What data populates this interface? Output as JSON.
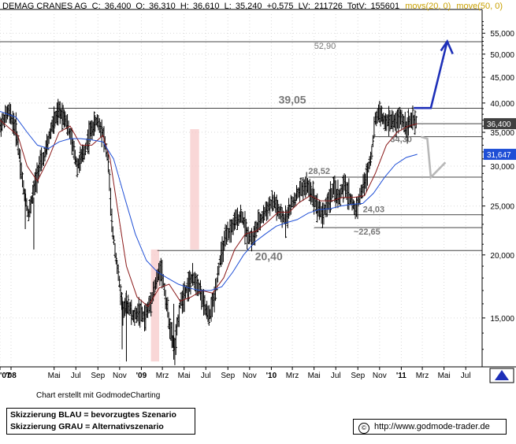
{
  "header": {
    "ticker": "DEMAG CRANES AG",
    "c_label": "C:",
    "c_value": "36,400",
    "o_label": "O:",
    "o_value": "36,310",
    "h_label": "H:",
    "h_value": "36,610",
    "l_label": "L:",
    "l_value": "35,240",
    "change": "+0,575",
    "lv_label": "LV:",
    "lv_value": "211726",
    "totv_label": "TotV:",
    "totv_value": "155601",
    "mov1": "movs(20, 0)",
    "mov2": "move(50, 0)"
  },
  "colors": {
    "ma20": "#8b1a1a",
    "ma50": "#1f4fd6",
    "scenario_blue": "#1d2fb8",
    "scenario_grey": "#b8b8b8",
    "highlight": "#f7c9c9",
    "last_price_box": "#404040",
    "ma50_box": "#1f4fd6"
  },
  "chart_data": {
    "type": "candlestick",
    "title": "DEMAG CRANES AG",
    "y_scale": "log",
    "ylim": [
      12.0,
      60.0
    ],
    "x_range": [
      "2007-12",
      "2011-08"
    ],
    "y_ticks": [
      "15,000",
      "20,000",
      "25,000",
      "30,000",
      "35,000",
      "40,000",
      "45,000",
      "50,000",
      "55,000"
    ],
    "y_tick_values": [
      15,
      20,
      25,
      30,
      35,
      40,
      45,
      50,
      55
    ],
    "x_ticks": [
      "'07",
      "'08",
      "Mai",
      "Jul",
      "Sep",
      "Nov",
      "'09",
      "Mrz",
      "Mai",
      "Jul",
      "Sep",
      "Nov",
      "'10",
      "Mrz",
      "Mai",
      "Jul",
      "Sep",
      "Nov",
      "'11",
      "Mrz",
      "Mai",
      "Jul"
    ],
    "x_tick_dates": [
      "2007-12-01",
      "2008-01-01",
      "2008-05-01",
      "2008-07-01",
      "2008-09-01",
      "2008-11-01",
      "2009-01-01",
      "2009-03-01",
      "2009-05-01",
      "2009-07-01",
      "2009-09-01",
      "2009-11-01",
      "2010-01-01",
      "2010-03-01",
      "2010-05-01",
      "2010-07-01",
      "2010-09-01",
      "2010-11-01",
      "2011-01-01",
      "2011-03-01",
      "2011-05-01",
      "2011-07-01"
    ],
    "price_path": [
      [
        "2007-12-01",
        36.0
      ],
      [
        "2007-12-25",
        38.5
      ],
      [
        "2008-01-15",
        35.5
      ],
      [
        "2008-02-05",
        27.0
      ],
      [
        "2008-02-20",
        24.0
      ],
      [
        "2008-03-05",
        27.0
      ],
      [
        "2008-03-20",
        30.0
      ],
      [
        "2008-04-05",
        31.5
      ],
      [
        "2008-04-25",
        36.0
      ],
      [
        "2008-05-15",
        38.5
      ],
      [
        "2008-06-01",
        37.5
      ],
      [
        "2008-06-20",
        33.5
      ],
      [
        "2008-07-05",
        30.0
      ],
      [
        "2008-07-25",
        32.0
      ],
      [
        "2008-08-10",
        35.0
      ],
      [
        "2008-08-30",
        37.0
      ],
      [
        "2008-09-15",
        35.0
      ],
      [
        "2008-09-30",
        30.5
      ],
      [
        "2008-10-10",
        23.0
      ],
      [
        "2008-10-25",
        19.0
      ],
      [
        "2008-11-10",
        15.5
      ],
      [
        "2008-11-25",
        16.0
      ],
      [
        "2008-12-10",
        15.0
      ],
      [
        "2008-12-25",
        15.5
      ],
      [
        "2009-01-10",
        15.0
      ],
      [
        "2009-01-25",
        16.0
      ],
      [
        "2009-02-10",
        17.5
      ],
      [
        "2009-02-25",
        19.0
      ],
      [
        "2009-03-10",
        16.5
      ],
      [
        "2009-03-25",
        14.0
      ],
      [
        "2009-04-05",
        13.0
      ],
      [
        "2009-04-20",
        16.0
      ],
      [
        "2009-05-05",
        17.0
      ],
      [
        "2009-05-25",
        18.0
      ],
      [
        "2009-06-10",
        17.5
      ],
      [
        "2009-06-25",
        16.0
      ],
      [
        "2009-07-10",
        15.0
      ],
      [
        "2009-07-25",
        16.5
      ],
      [
        "2009-08-10",
        19.5
      ],
      [
        "2009-08-25",
        21.5
      ],
      [
        "2009-09-10",
        22.5
      ],
      [
        "2009-09-25",
        23.5
      ],
      [
        "2009-10-10",
        24.0
      ],
      [
        "2009-10-25",
        22.0
      ],
      [
        "2009-11-10",
        21.5
      ],
      [
        "2009-11-25",
        23.0
      ],
      [
        "2009-12-10",
        24.0
      ],
      [
        "2009-12-25",
        25.0
      ],
      [
        "2010-01-10",
        25.5
      ],
      [
        "2010-01-25",
        24.0
      ],
      [
        "2010-02-10",
        23.5
      ],
      [
        "2010-02-25",
        25.0
      ],
      [
        "2010-03-10",
        26.0
      ],
      [
        "2010-03-25",
        27.0
      ],
      [
        "2010-04-10",
        27.5
      ],
      [
        "2010-04-25",
        26.5
      ],
      [
        "2010-05-10",
        25.0
      ],
      [
        "2010-05-25",
        24.0
      ],
      [
        "2010-06-10",
        25.5
      ],
      [
        "2010-06-25",
        27.0
      ],
      [
        "2010-07-10",
        26.0
      ],
      [
        "2010-07-25",
        27.5
      ],
      [
        "2010-08-10",
        26.0
      ],
      [
        "2010-08-25",
        24.5
      ],
      [
        "2010-09-10",
        26.5
      ],
      [
        "2010-09-25",
        28.5
      ],
      [
        "2010-10-10",
        32.0
      ],
      [
        "2010-10-20",
        37.0
      ],
      [
        "2010-11-01",
        38.5
      ],
      [
        "2010-11-15",
        36.5
      ],
      [
        "2010-11-30",
        37.0
      ],
      [
        "2010-12-15",
        36.5
      ],
      [
        "2010-12-30",
        37.5
      ],
      [
        "2011-01-15",
        36.0
      ],
      [
        "2011-01-30",
        37.0
      ],
      [
        "2011-02-15",
        36.4
      ]
    ],
    "ma20_path": [
      [
        "2007-12-01",
        37.0
      ],
      [
        "2008-01-20",
        34.5
      ],
      [
        "2008-02-15",
        30.0
      ],
      [
        "2008-03-15",
        28.0
      ],
      [
        "2008-04-15",
        31.0
      ],
      [
        "2008-05-15",
        35.0
      ],
      [
        "2008-06-15",
        36.0
      ],
      [
        "2008-07-15",
        33.0
      ],
      [
        "2008-08-15",
        33.0
      ],
      [
        "2008-09-15",
        34.5
      ],
      [
        "2008-10-05",
        31.0
      ],
      [
        "2008-10-25",
        25.0
      ],
      [
        "2008-11-20",
        19.0
      ],
      [
        "2008-12-20",
        16.5
      ],
      [
        "2009-01-20",
        15.8
      ],
      [
        "2009-02-20",
        17.2
      ],
      [
        "2009-03-20",
        17.5
      ],
      [
        "2009-04-20",
        16.2
      ],
      [
        "2009-05-20",
        16.5
      ],
      [
        "2009-06-20",
        17.0
      ],
      [
        "2009-07-20",
        16.8
      ],
      [
        "2009-08-20",
        18.0
      ],
      [
        "2009-09-20",
        20.5
      ],
      [
        "2009-10-20",
        22.0
      ],
      [
        "2009-11-20",
        22.3
      ],
      [
        "2009-12-20",
        23.2
      ],
      [
        "2010-01-20",
        24.3
      ],
      [
        "2010-02-20",
        24.3
      ],
      [
        "2010-03-20",
        25.4
      ],
      [
        "2010-04-20",
        26.2
      ],
      [
        "2010-05-20",
        25.6
      ],
      [
        "2010-06-20",
        25.6
      ],
      [
        "2010-07-20",
        26.0
      ],
      [
        "2010-08-20",
        26.0
      ],
      [
        "2010-09-20",
        26.2
      ],
      [
        "2010-10-20",
        29.0
      ],
      [
        "2010-11-20",
        33.0
      ],
      [
        "2010-12-20",
        35.0
      ],
      [
        "2011-01-20",
        36.0
      ],
      [
        "2011-02-15",
        36.4
      ]
    ],
    "ma50_path": [
      [
        "2007-12-01",
        38.5
      ],
      [
        "2008-01-15",
        37.5
      ],
      [
        "2008-02-15",
        35.0
      ],
      [
        "2008-03-15",
        33.0
      ],
      [
        "2008-04-15",
        32.5
      ],
      [
        "2008-05-15",
        33.5
      ],
      [
        "2008-06-15",
        34.0
      ],
      [
        "2008-07-15",
        34.0
      ],
      [
        "2008-08-15",
        33.8
      ],
      [
        "2008-09-15",
        33.5
      ],
      [
        "2008-10-15",
        31.0
      ],
      [
        "2008-11-15",
        26.0
      ],
      [
        "2008-12-15",
        22.0
      ],
      [
        "2009-01-15",
        19.5
      ],
      [
        "2009-02-15",
        18.5
      ],
      [
        "2009-03-15",
        18.0
      ],
      [
        "2009-04-15",
        17.5
      ],
      [
        "2009-05-15",
        17.2
      ],
      [
        "2009-06-15",
        17.0
      ],
      [
        "2009-07-15",
        17.0
      ],
      [
        "2009-08-15",
        17.3
      ],
      [
        "2009-09-15",
        18.5
      ],
      [
        "2009-10-15",
        20.0
      ],
      [
        "2009-11-15",
        21.2
      ],
      [
        "2009-12-15",
        22.0
      ],
      [
        "2010-01-15",
        22.8
      ],
      [
        "2010-02-15",
        23.2
      ],
      [
        "2010-03-15",
        23.5
      ],
      [
        "2010-04-15",
        24.2
      ],
      [
        "2010-05-15",
        24.6
      ],
      [
        "2010-06-15",
        24.7
      ],
      [
        "2010-07-15",
        25.0
      ],
      [
        "2010-08-15",
        25.2
      ],
      [
        "2010-09-15",
        25.3
      ],
      [
        "2010-10-15",
        26.5
      ],
      [
        "2010-11-15",
        28.5
      ],
      [
        "2010-12-15",
        30.2
      ],
      [
        "2011-01-15",
        31.2
      ],
      [
        "2011-02-15",
        31.65
      ]
    ],
    "levels": [
      {
        "label": "52,90",
        "value": 52.9,
        "from": "2007-12-01",
        "to": "2011-08-15",
        "line": true
      },
      {
        "label": "39,05",
        "value": 39.05,
        "from": "2008-04-15",
        "to": "2011-08-15",
        "line": true
      },
      {
        "label": "34,30",
        "value": 34.3,
        "from": "2010-10-15",
        "to": "2011-08-15",
        "line": true
      },
      {
        "label": "28,52",
        "value": 28.52,
        "from": "2010-04-15",
        "to": "2011-08-15",
        "line": true
      },
      {
        "label": "24,03",
        "value": 24.03,
        "from": "2010-06-01",
        "to": "2011-08-15",
        "line": true
      },
      {
        "label": "~22,65",
        "value": 22.65,
        "from": "2010-05-01",
        "to": "2011-08-15",
        "line": true
      },
      {
        "label": "20,40",
        "value": 20.4,
        "from": "2009-02-15",
        "to": "2011-08-15",
        "line": true
      }
    ],
    "last_price": {
      "label": "36,400",
      "value": 36.4
    },
    "ma50_last": {
      "label": "31,647",
      "value": 31.65
    },
    "highlight_periods": [
      {
        "from": "2009-01-28",
        "to": "2009-02-20",
        "low": 12.3,
        "high": 20.5
      },
      {
        "from": "2009-05-18",
        "to": "2009-06-12",
        "low": 20.5,
        "high": 35.5
      }
    ],
    "scenario_blue": [
      [
        "2011-02-05",
        39.1
      ],
      [
        "2011-03-25",
        39.1
      ],
      [
        "2011-05-10",
        53.0
      ]
    ],
    "scenario_grey": [
      [
        "2011-02-25",
        34.3
      ],
      [
        "2011-03-15",
        34.0
      ],
      [
        "2011-03-25",
        28.5
      ],
      [
        "2011-05-05",
        30.5
      ]
    ]
  },
  "footer": {
    "credit": "Chart erstellt mit GodmodeCharting",
    "legend_line1": "Skizzierung BLAU = bevorzugtes Szenario",
    "legend_line2": "Skizzierung GRAU = Alternativszenario",
    "url": "http://www.godmode-trader.de",
    "copyright_glyph": "©"
  }
}
